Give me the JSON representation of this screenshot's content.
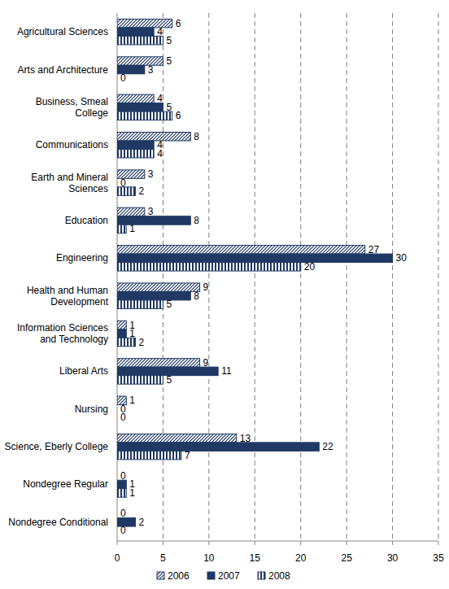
{
  "chart_data": {
    "type": "bar",
    "orientation": "horizontal",
    "categories": [
      "Agricultural Sciences",
      "Arts and Architecture",
      "Business, Smeal College",
      "Communications",
      "Earth and Mineral Sciences",
      "Education",
      "Engineering",
      "Health and Human Development",
      "Information Sciences and Technology",
      "Liberal Arts",
      "Nursing",
      "Science, Eberly College",
      "Nondegree Regular",
      "Nondegree Conditional"
    ],
    "series": [
      {
        "name": "2006",
        "color": "#1f3864",
        "values": [
          6,
          5,
          4,
          8,
          3,
          3,
          27,
          9,
          1,
          9,
          1,
          13,
          0,
          0
        ]
      },
      {
        "name": "2007",
        "color": "#1f3864",
        "values": [
          4,
          3,
          5,
          4,
          0,
          8,
          30,
          8,
          1,
          11,
          0,
          22,
          1,
          2
        ]
      },
      {
        "name": "2008",
        "color": "#1f3864",
        "values": [
          5,
          0,
          6,
          4,
          2,
          1,
          20,
          5,
          2,
          5,
          0,
          7,
          1,
          0
        ]
      }
    ],
    "xlim": [
      0,
      35
    ],
    "xticks": [
      0,
      5,
      10,
      15,
      20,
      25,
      30,
      35
    ],
    "grid": true,
    "data_labels": true,
    "legend": "bottom"
  }
}
